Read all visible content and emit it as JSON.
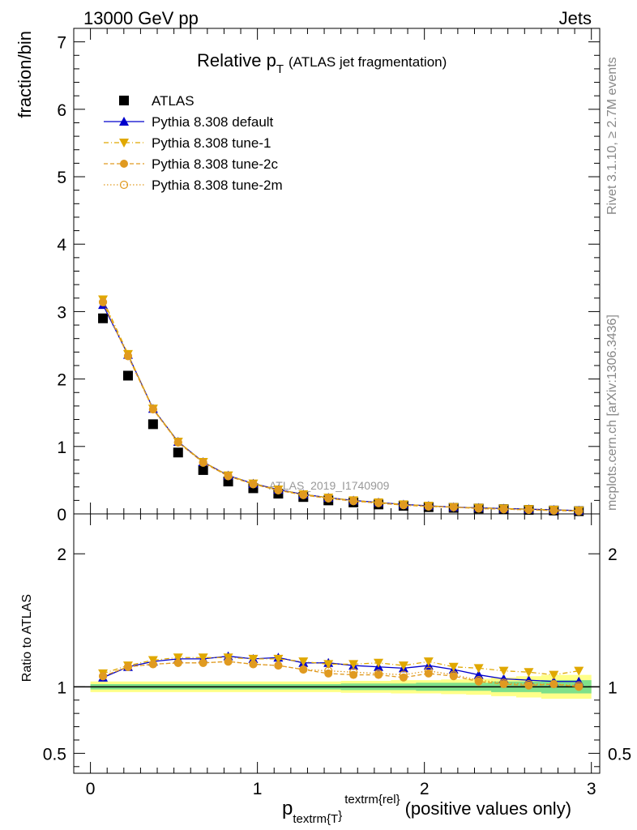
{
  "header": {
    "left": "13000 GeV pp",
    "right": "Jets"
  },
  "side": {
    "rivet": "Rivet 3.1.10, ≥ 2.7M events",
    "mcplots": "mcplots.cern.ch [arXiv:1306.3436]"
  },
  "chart_data": [
    {
      "type": "scatter",
      "panel": "main",
      "title": "Relative p",
      "title_sub": "T",
      "title_suffix": "(ATLAS jet fragmentation)",
      "ylabel": "fraction/bin",
      "watermark": "ATLAS_2019_I1740909",
      "xlim": [
        -0.1,
        3.05
      ],
      "ylim": [
        0,
        7.2
      ],
      "yticks": [
        0,
        1,
        2,
        3,
        4,
        5,
        6,
        7
      ],
      "x": [
        0.075,
        0.225,
        0.375,
        0.525,
        0.675,
        0.825,
        0.975,
        1.125,
        1.275,
        1.425,
        1.575,
        1.725,
        1.875,
        2.025,
        2.175,
        2.325,
        2.475,
        2.625,
        2.775,
        2.925
      ],
      "legend_position": "top-left",
      "series": [
        {
          "name": "ATLAS",
          "color": "#000000",
          "marker": "square",
          "values": [
            2.9,
            2.05,
            1.33,
            0.91,
            0.65,
            0.48,
            0.38,
            0.3,
            0.25,
            0.2,
            0.17,
            0.14,
            0.12,
            0.1,
            0.09,
            0.08,
            0.07,
            0.06,
            0.05,
            0.04
          ]
        },
        {
          "name": "Pythia 8.308 default",
          "color": "#0000cc",
          "marker": "triangle-up",
          "line": "solid",
          "values": [
            3.1,
            2.36,
            1.56,
            1.07,
            0.77,
            0.57,
            0.45,
            0.36,
            0.29,
            0.24,
            0.2,
            0.17,
            0.14,
            0.12,
            0.1,
            0.09,
            0.08,
            0.07,
            0.06,
            0.05
          ]
        },
        {
          "name": "Pythia 8.308 tune-1",
          "color": "#e0a800",
          "marker": "triangle-down",
          "line": "dashdot",
          "values": [
            3.18,
            2.37,
            1.56,
            1.07,
            0.77,
            0.57,
            0.45,
            0.36,
            0.29,
            0.24,
            0.2,
            0.17,
            0.14,
            0.12,
            0.1,
            0.09,
            0.08,
            0.07,
            0.06,
            0.05
          ]
        },
        {
          "name": "Pythia 8.308 tune-2c",
          "color": "#e09a20",
          "marker": "circle",
          "line": "dashed",
          "values": [
            3.14,
            2.34,
            1.55,
            1.06,
            0.76,
            0.56,
            0.44,
            0.35,
            0.28,
            0.23,
            0.19,
            0.16,
            0.13,
            0.11,
            0.1,
            0.08,
            0.07,
            0.06,
            0.05,
            0.04
          ]
        },
        {
          "name": "Pythia 8.308 tune-2m",
          "color": "#e09a20",
          "marker": "circle-open",
          "line": "dotted",
          "values": [
            3.14,
            2.34,
            1.55,
            1.06,
            0.76,
            0.56,
            0.44,
            0.35,
            0.28,
            0.23,
            0.19,
            0.16,
            0.13,
            0.11,
            0.1,
            0.08,
            0.07,
            0.06,
            0.05,
            0.04
          ]
        }
      ]
    },
    {
      "type": "line",
      "panel": "ratio",
      "ylabel": "Ratio to ATLAS",
      "xlabel": "p",
      "xlabel_sub": "textrm{T",
      "xlabel_sup": "textrm{rel",
      "xlabel_brace_sub": "}",
      "xlabel_brace_sup": "}",
      "xlabel_suffix": "(positive values only)",
      "xlim": [
        -0.1,
        3.05
      ],
      "ylim": [
        0.35,
        2.3
      ],
      "yticks": [
        0.5,
        1,
        2
      ],
      "ytick_labels": [
        "0.5",
        "1",
        "2"
      ],
      "xticks": [
        0,
        1,
        2,
        3
      ],
      "xtick_labels": [
        "0",
        "1",
        "2",
        "3"
      ],
      "x": [
        0.075,
        0.225,
        0.375,
        0.525,
        0.675,
        0.825,
        0.975,
        1.125,
        1.275,
        1.425,
        1.575,
        1.725,
        1.875,
        2.025,
        2.175,
        2.325,
        2.475,
        2.625,
        2.775,
        2.925
      ],
      "band_inner": {
        "color": "#7fe08a",
        "lo": [
          0.98,
          0.98,
          0.98,
          0.98,
          0.98,
          0.98,
          0.98,
          0.98,
          0.98,
          0.98,
          0.975,
          0.975,
          0.975,
          0.97,
          0.97,
          0.97,
          0.96,
          0.96,
          0.95,
          0.95
        ],
        "hi": [
          1.02,
          1.02,
          1.02,
          1.02,
          1.02,
          1.02,
          1.02,
          1.02,
          1.02,
          1.02,
          1.025,
          1.025,
          1.025,
          1.03,
          1.03,
          1.03,
          1.04,
          1.04,
          1.05,
          1.05
        ]
      },
      "band_outer": {
        "color": "#ffff88",
        "lo": [
          0.96,
          0.96,
          0.96,
          0.96,
          0.96,
          0.96,
          0.96,
          0.96,
          0.96,
          0.96,
          0.955,
          0.955,
          0.95,
          0.95,
          0.945,
          0.94,
          0.93,
          0.92,
          0.91,
          0.91
        ],
        "hi": [
          1.04,
          1.04,
          1.04,
          1.04,
          1.04,
          1.04,
          1.04,
          1.04,
          1.04,
          1.04,
          1.045,
          1.045,
          1.05,
          1.05,
          1.055,
          1.06,
          1.07,
          1.08,
          1.09,
          1.09
        ]
      },
      "series": [
        {
          "name": "Pythia 8.308 default",
          "color": "#0000cc",
          "marker": "triangle-up",
          "line": "solid",
          "values": [
            1.07,
            1.15,
            1.19,
            1.21,
            1.21,
            1.23,
            1.21,
            1.22,
            1.18,
            1.18,
            1.16,
            1.15,
            1.14,
            1.16,
            1.13,
            1.09,
            1.06,
            1.05,
            1.04,
            1.04
          ]
        },
        {
          "name": "Pythia 8.308 tune-1",
          "color": "#e0a800",
          "marker": "triangle-down",
          "line": "dashdot",
          "values": [
            1.1,
            1.16,
            1.2,
            1.22,
            1.22,
            1.22,
            1.21,
            1.21,
            1.19,
            1.17,
            1.17,
            1.18,
            1.16,
            1.19,
            1.15,
            1.14,
            1.12,
            1.11,
            1.09,
            1.12
          ]
        },
        {
          "name": "Pythia 8.308 tune-2c",
          "color": "#e09a20",
          "marker": "circle",
          "line": "dashed",
          "values": [
            1.08,
            1.15,
            1.17,
            1.18,
            1.18,
            1.19,
            1.17,
            1.16,
            1.13,
            1.1,
            1.09,
            1.09,
            1.07,
            1.1,
            1.08,
            1.04,
            1.02,
            1.01,
            1.02,
            1.0
          ]
        },
        {
          "name": "Pythia 8.308 tune-2m",
          "color": "#e09a20",
          "marker": "circle-open",
          "line": "dotted",
          "values": [
            1.08,
            1.15,
            1.17,
            1.18,
            1.18,
            1.19,
            1.17,
            1.16,
            1.13,
            1.12,
            1.11,
            1.1,
            1.09,
            1.12,
            1.09,
            1.05,
            1.03,
            1.02,
            1.02,
            1.01
          ]
        }
      ]
    }
  ]
}
